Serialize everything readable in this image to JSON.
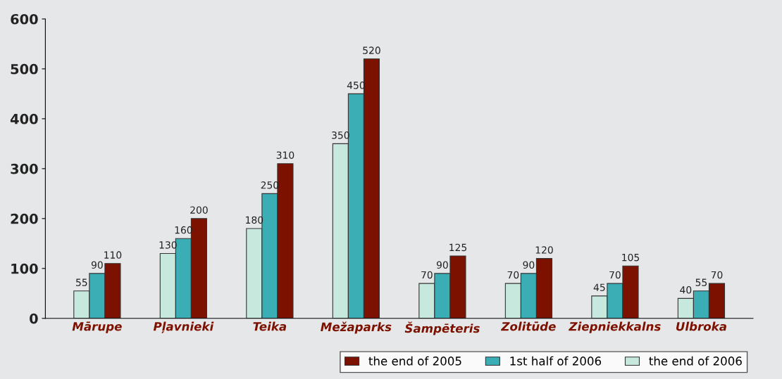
{
  "chart_data": {
    "type": "bar",
    "categories": [
      "Mārupe",
      "Pļavnieki",
      "Teika",
      "Mežaparks",
      "Šampēteris",
      "Zolitūde",
      "Ziepniekkalns",
      "Ulbroka"
    ],
    "series": [
      {
        "name": "the end of 2006",
        "color": "#c6e8dd",
        "values": [
          55,
          130,
          180,
          350,
          70,
          70,
          45,
          40
        ]
      },
      {
        "name": "1st half of 2006",
        "color": "#3aadb5",
        "values": [
          90,
          160,
          250,
          450,
          90,
          90,
          70,
          55
        ]
      },
      {
        "name": "the end of 2005",
        "color": "#7d1100",
        "values": [
          110,
          200,
          310,
          520,
          125,
          120,
          105,
          70
        ]
      }
    ],
    "ylim": [
      0,
      600
    ],
    "yticks": [
      0,
      100,
      200,
      300,
      400,
      500,
      600
    ],
    "data_labels": true,
    "grid": false,
    "legend": "bottom right"
  }
}
